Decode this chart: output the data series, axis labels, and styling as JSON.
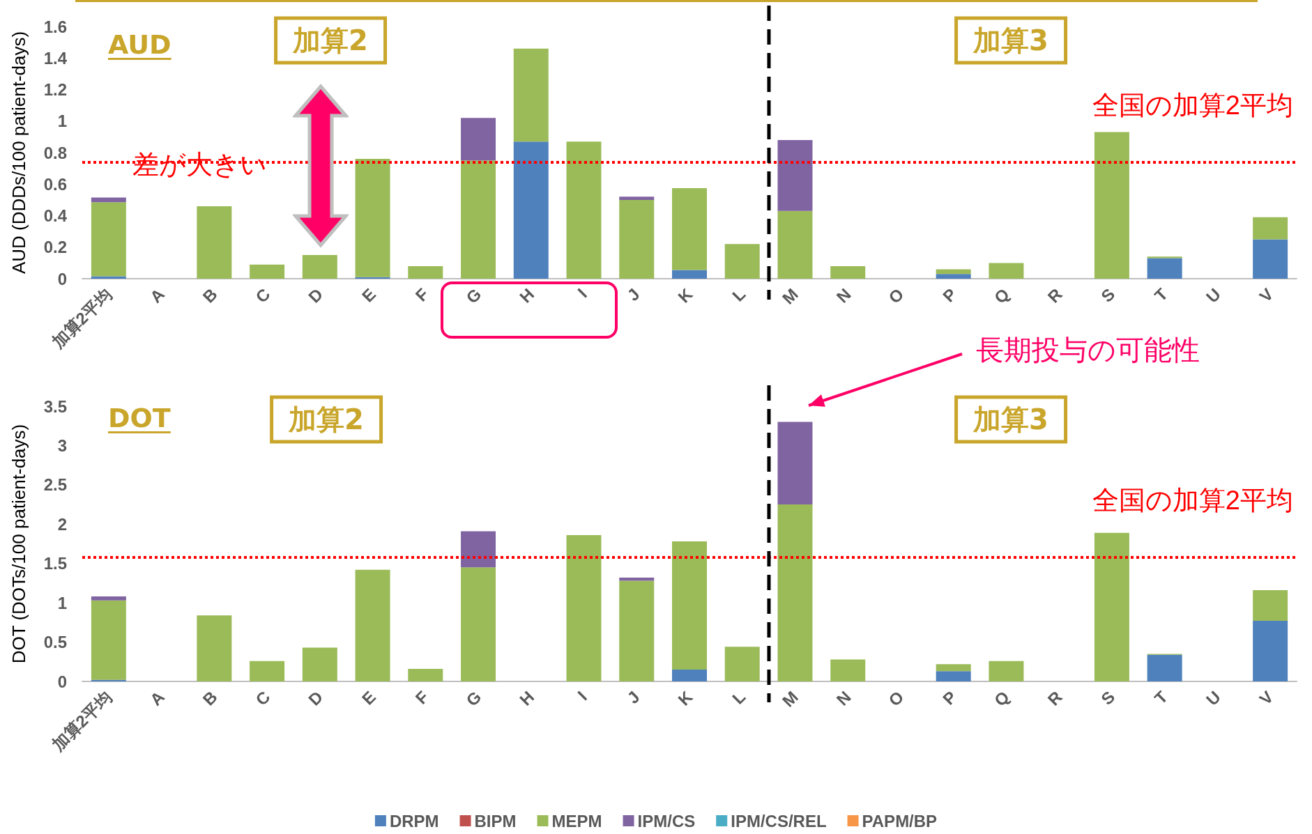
{
  "chart_data": [
    {
      "type": "bar",
      "title": "AUD",
      "ylabel": "AUD (DDDs/100 patient-days)",
      "stacked": true,
      "legend": false,
      "grid": false,
      "categories": [
        "加算2平均",
        "A",
        "B",
        "C",
        "D",
        "E",
        "F",
        "G",
        "H",
        "I",
        "J",
        "K",
        "L",
        "M",
        "N",
        "O",
        "P",
        "Q",
        "R",
        "S",
        "T",
        "U",
        "V"
      ],
      "series": [
        {
          "color": "#4f81bd",
          "values": [
            0.015,
            0,
            0,
            0,
            0,
            0.01,
            0,
            0,
            0.87,
            0,
            0,
            0.055,
            0,
            0,
            0,
            0,
            0.03,
            0,
            0,
            0,
            0.13,
            0,
            0.25
          ]
        },
        {
          "color": "#9bbb59",
          "values": [
            0.47,
            0,
            0.46,
            0.09,
            0.15,
            0.75,
            0.08,
            0.75,
            0.59,
            0.87,
            0.5,
            0.52,
            0.22,
            0.43,
            0.08,
            0,
            0.03,
            0.1,
            0,
            0.93,
            0.01,
            0,
            0.14
          ]
        },
        {
          "color": "#8064a2",
          "values": [
            0.03,
            0,
            0,
            0,
            0,
            0,
            0,
            0.27,
            0,
            0,
            0.02,
            0,
            0,
            0.45,
            0,
            0,
            0,
            0,
            0,
            0,
            0,
            0,
            0
          ]
        }
      ],
      "ylim": [
        0,
        1.6
      ],
      "yticks": [
        0,
        0.2,
        0.4,
        0.6,
        0.8,
        1,
        1.2,
        1.4,
        1.6
      ],
      "ref_lines": [
        {
          "axis": "y",
          "value": 0.74,
          "label": "全国の加算2平均",
          "color": "#ff0000",
          "line_style": "dotted"
        }
      ],
      "annotations": [
        "加算2",
        "加算3",
        "差が大きい"
      ]
    },
    {
      "type": "bar",
      "title": "DOT",
      "ylabel": "DOT (DOTs/100 patient-days)",
      "stacked": true,
      "legend": "bottom",
      "grid": false,
      "categories": [
        "加算2平均",
        "A",
        "B",
        "C",
        "D",
        "E",
        "F",
        "G",
        "H",
        "I",
        "J",
        "K",
        "L",
        "M",
        "N",
        "O",
        "P",
        "Q",
        "R",
        "S",
        "T",
        "U",
        "V"
      ],
      "series": [
        {
          "name": "DRPM",
          "color": "#4f81bd",
          "values": [
            0.02,
            0,
            0,
            0,
            0,
            0,
            0,
            0,
            0,
            0,
            0,
            0.15,
            0,
            0,
            0,
            0,
            0.13,
            0,
            0,
            0,
            0.34,
            0,
            0.77
          ]
        },
        {
          "name": "BIPM",
          "color": "#c0504d",
          "values": [
            0,
            0,
            0,
            0,
            0,
            0,
            0,
            0,
            0,
            0,
            0,
            0,
            0,
            0,
            0,
            0,
            0,
            0,
            0,
            0,
            0,
            0,
            0
          ]
        },
        {
          "name": "MEPM",
          "color": "#9bbb59",
          "values": [
            1.01,
            0,
            0.84,
            0.26,
            0.43,
            1.42,
            0.16,
            1.45,
            0,
            1.86,
            1.28,
            1.63,
            0.44,
            2.25,
            0.28,
            0,
            0.09,
            0.26,
            0,
            1.89,
            0.01,
            0,
            0.39
          ]
        },
        {
          "name": "IPM/CS",
          "color": "#8064a2",
          "values": [
            0.05,
            0,
            0,
            0,
            0,
            0,
            0,
            0.46,
            0,
            0,
            0.04,
            0,
            0,
            1.05,
            0,
            0,
            0,
            0,
            0,
            0,
            0,
            0,
            0
          ]
        },
        {
          "name": "IPM/CS/REL",
          "color": "#4bacc6",
          "values": [
            0,
            0,
            0,
            0,
            0,
            0,
            0,
            0,
            0,
            0,
            0,
            0,
            0,
            0,
            0,
            0,
            0,
            0,
            0,
            0,
            0,
            0,
            0
          ]
        },
        {
          "name": "PAPM/BP",
          "color": "#f79646",
          "values": [
            0,
            0,
            0,
            0,
            0,
            0,
            0,
            0,
            0,
            0,
            0,
            0,
            0,
            0,
            0,
            0,
            0,
            0,
            0,
            0,
            0,
            0,
            0
          ]
        }
      ],
      "ylim": [
        0,
        3.5
      ],
      "yticks": [
        0,
        0.5,
        1,
        1.5,
        2,
        2.5,
        3,
        3.5
      ],
      "ref_lines": [
        {
          "axis": "y",
          "value": 1.58,
          "label": "全国の加算2平均",
          "color": "#ff0000",
          "line_style": "dotted"
        }
      ],
      "annotations": [
        "加算2",
        "加算3",
        "長期投与の可能性"
      ]
    }
  ]
}
